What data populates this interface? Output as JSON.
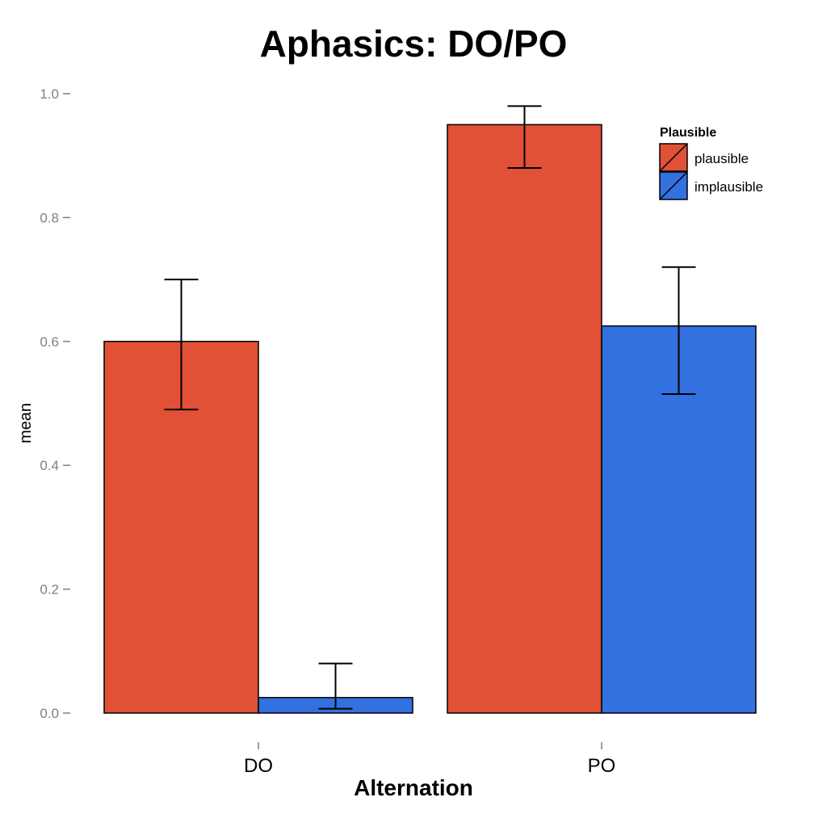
{
  "chart_data": {
    "type": "bar",
    "title": "Aphasics: DO/PO",
    "xlabel": "Alternation",
    "ylabel": "mean",
    "categories": [
      "DO",
      "PO"
    ],
    "ylim": [
      0,
      1.0
    ],
    "yticks": [
      0.0,
      0.2,
      0.4,
      0.6,
      0.8,
      1.0
    ],
    "ytick_labels": [
      "0.0",
      "0.2",
      "0.4",
      "0.6",
      "0.8",
      "1.0"
    ],
    "grid": false,
    "legend": {
      "title": "Plausible",
      "position": "top-right"
    },
    "series": [
      {
        "name": "plausible",
        "color": "#E05135",
        "values": [
          0.6,
          0.95
        ],
        "err_low": [
          0.49,
          0.88
        ],
        "err_high": [
          0.7,
          0.98
        ]
      },
      {
        "name": "implausible",
        "color": "#3370E0",
        "values": [
          0.025,
          0.625
        ],
        "err_low": [
          0.007,
          0.515
        ],
        "err_high": [
          0.08,
          0.72
        ]
      }
    ]
  }
}
